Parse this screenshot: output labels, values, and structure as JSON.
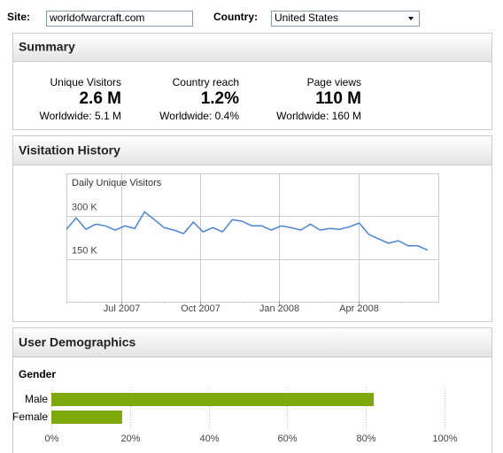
{
  "header": {
    "site_label": "Site:",
    "site_value": "worldofwarcraft.com",
    "country_label": "Country:",
    "country_value": "United States"
  },
  "summary": {
    "title": "Summary",
    "stats": [
      {
        "label": "Unique Visitors",
        "value": "2.6 M",
        "worldwide": "Worldwide: 5.1 M"
      },
      {
        "label": "Country reach",
        "value": "1.2%",
        "worldwide": "Worldwide: 0.4%"
      },
      {
        "label": "Page views",
        "value": "110 M",
        "worldwide": "Worldwide: 160 M"
      }
    ]
  },
  "chart_data": [
    {
      "type": "line",
      "title": "Visitation History",
      "ylabel": "Daily Unique Visitors",
      "values": [
        254000,
        294000,
        254000,
        272000,
        266000,
        251000,
        266000,
        257000,
        315000,
        288000,
        260000,
        251000,
        239000,
        279000,
        245000,
        260000,
        245000,
        288000,
        282000,
        266000,
        266000,
        251000,
        266000,
        260000,
        251000,
        272000,
        251000,
        257000,
        254000,
        263000,
        276000,
        236000,
        220000,
        205000,
        214000,
        196000,
        196000,
        181000
      ],
      "color": "#4a84dc",
      "xlim": [
        0,
        38.2
      ],
      "xticks": [
        {
          "value": 5.64,
          "label": "Jul 2007"
        },
        {
          "value": 13.7,
          "label": "Oct 2007"
        },
        {
          "value": 21.8,
          "label": "Jan 2008"
        },
        {
          "value": 29.9,
          "label": "Apr 2008"
        }
      ],
      "ylim": [
        0,
        450000
      ],
      "yticks": [
        {
          "value": 150000,
          "label": "150 K"
        },
        {
          "value": 300000,
          "label": "300 K"
        }
      ],
      "grid": true
    },
    {
      "type": "bar",
      "orientation": "horizontal",
      "title": "User Demographics",
      "subtitle": "Gender",
      "categories": [
        "Male",
        "Female"
      ],
      "values": [
        82,
        18
      ],
      "color": "#7fa80c",
      "xlim": [
        0,
        100
      ],
      "xticks": [
        {
          "value": 0,
          "label": "0%"
        },
        {
          "value": 20,
          "label": "20%"
        },
        {
          "value": 40,
          "label": "40%"
        },
        {
          "value": 60,
          "label": "60%"
        },
        {
          "value": 80,
          "label": "80%"
        },
        {
          "value": 100,
          "label": "100%"
        }
      ],
      "grid": true
    }
  ]
}
